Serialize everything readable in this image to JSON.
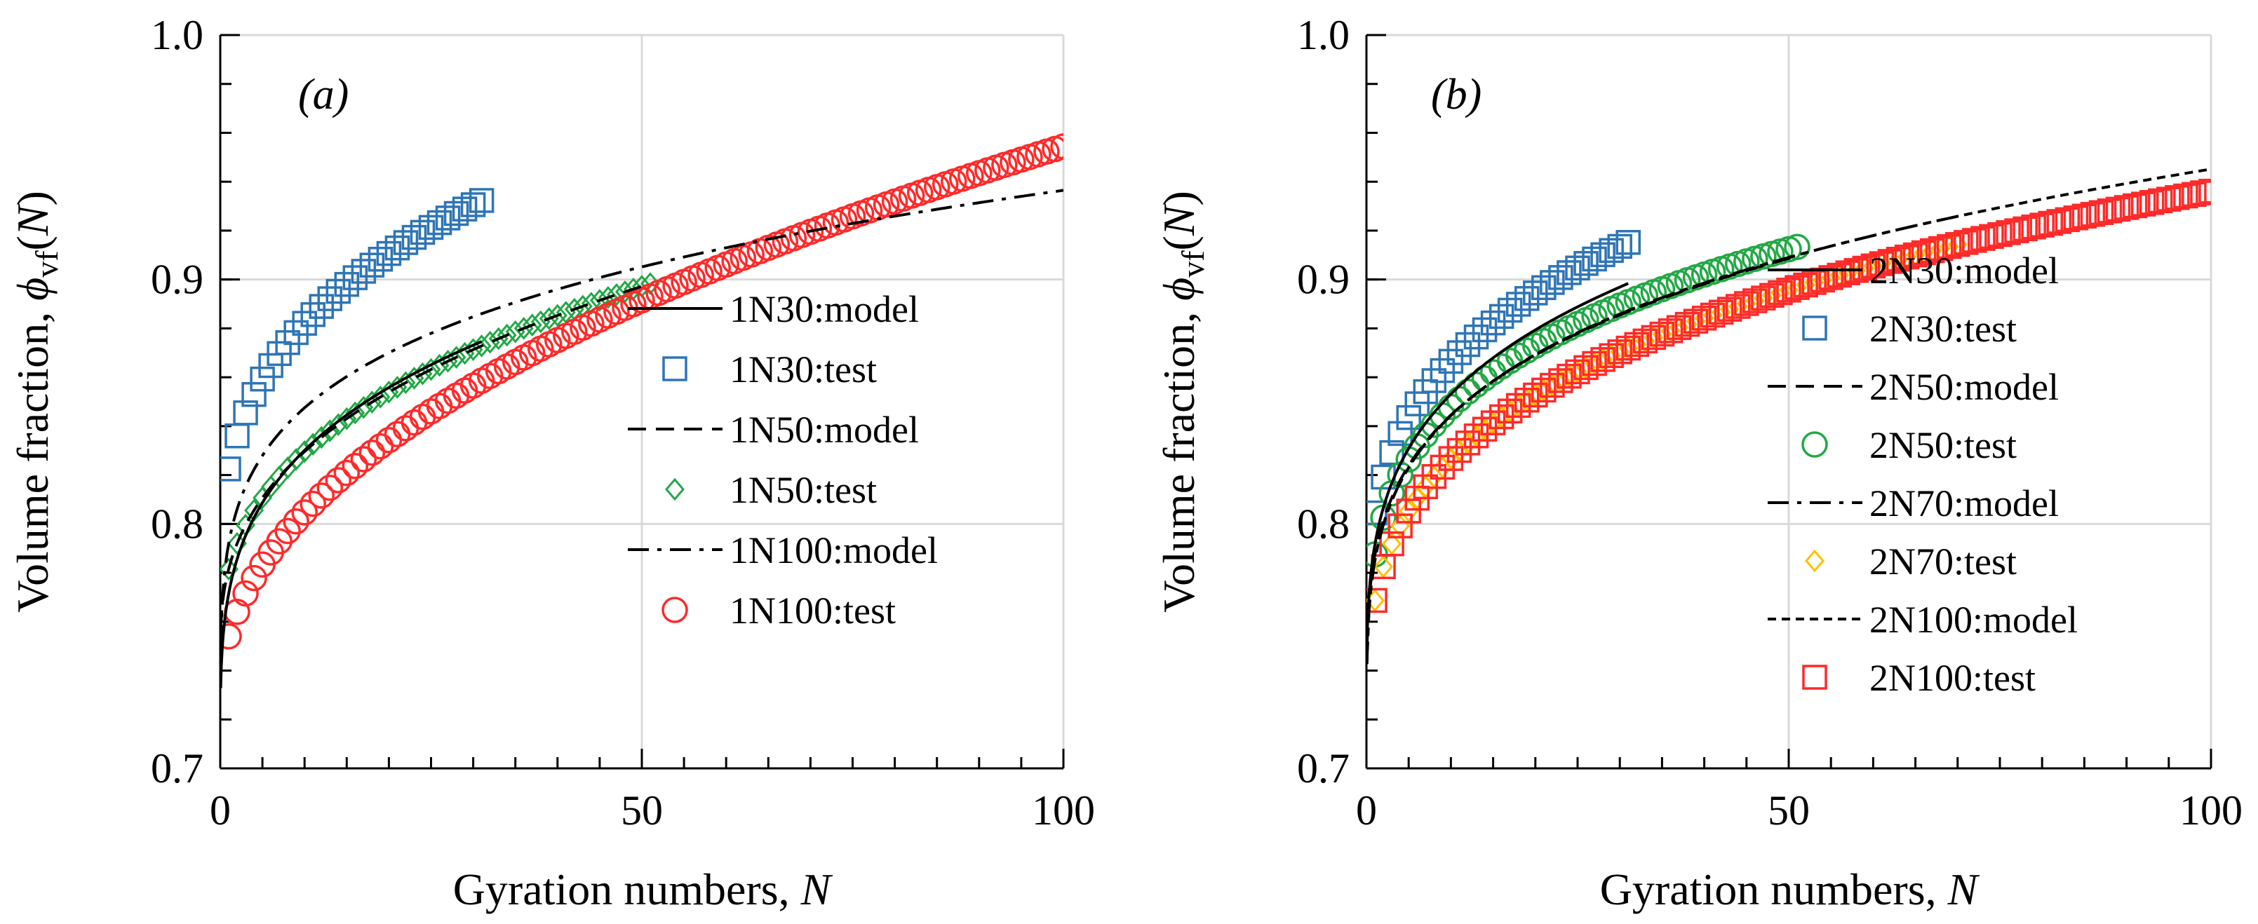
{
  "chart_data": [
    {
      "type": "scatter",
      "panel_label": "(a)",
      "xlabel": "Gyration numbers, ",
      "xlabel_italic": "N",
      "ylabel": "Volume fraction, ",
      "ylabel_symbol": "ϕ",
      "ylabel_sub": "vf",
      "ylabel_suffix": "(",
      "ylabel_arg": "N",
      "ylabel_close": ")",
      "xlim": [
        0,
        100
      ],
      "ylim": [
        0.7,
        1.0
      ],
      "xticks": [
        0,
        50,
        100
      ],
      "xtick_labels": [
        "0",
        "50",
        "100"
      ],
      "yticks": [
        0.7,
        0.8,
        0.9,
        1.0
      ],
      "ytick_labels": [
        "0.7",
        "0.8",
        "0.9",
        "1.0"
      ],
      "grid": true,
      "legend_position": "center-right",
      "series": [
        {
          "name": "1N30:model",
          "kind": "line",
          "dash": "solid",
          "color": "#000000",
          "params": {
            "a": 0.7,
            "b": 0.0715,
            "c": 0.26
          },
          "x_max": 31
        },
        {
          "name": "1N30:test",
          "kind": "marker",
          "marker": "square",
          "color": "#2E75B6",
          "params": {
            "a": 0.769,
            "b": 0.0535,
            "c": 0.325
          },
          "x_max": 31
        },
        {
          "name": "1N50:model",
          "kind": "line",
          "dash": "dashed",
          "color": "#000000",
          "params": {
            "a": 0.745,
            "b": 0.0365,
            "c": 0.365
          },
          "x_max": 51
        },
        {
          "name": "1N50:test",
          "kind": "marker",
          "marker": "diamond",
          "color": "#22A845",
          "params": {
            "a": 0.745,
            "b": 0.0365,
            "c": 0.365
          },
          "x_max": 51
        },
        {
          "name": "1N100:model",
          "kind": "line",
          "dash": "dashdot",
          "color": "#000000",
          "params": {
            "a": 0.7,
            "b": 0.092,
            "c": 0.205
          },
          "x_max": 100
        },
        {
          "name": "1N100:test",
          "kind": "marker",
          "marker": "circle",
          "color": "#FF2A2A",
          "params": {
            "a": 0.728,
            "b": 0.026,
            "c": 0.47
          },
          "x_max": 100
        }
      ]
    },
    {
      "type": "scatter",
      "panel_label": "(b)",
      "xlabel": "Gyration numbers, ",
      "xlabel_italic": "N",
      "ylabel": "Volume fraction, ",
      "ylabel_symbol": "ϕ",
      "ylabel_sub": "vf",
      "ylabel_suffix": "(",
      "ylabel_arg": "N",
      "ylabel_close": ")",
      "xlim": [
        0,
        100
      ],
      "ylim": [
        0.7,
        1.0
      ],
      "xticks": [
        0,
        50,
        100
      ],
      "xtick_labels": [
        "0",
        "50",
        "100"
      ],
      "yticks": [
        0.7,
        0.8,
        0.9,
        1.0
      ],
      "ytick_labels": [
        "0.7",
        "0.8",
        "0.9",
        "1.0"
      ],
      "grid": true,
      "legend_position": "center-right",
      "series": [
        {
          "name": "2N30:model",
          "kind": "line",
          "dash": "solid",
          "color": "#000000",
          "params": {
            "a": 0.708,
            "b": 0.0835,
            "c": 0.24
          },
          "x_max": 31
        },
        {
          "name": "2N30:test",
          "kind": "marker",
          "marker": "square",
          "color": "#2E75B6",
          "params": {
            "a": 0.736,
            "b": 0.0685,
            "c": 0.28
          },
          "x_max": 31
        },
        {
          "name": "2N50:model",
          "kind": "line",
          "dash": "dashed",
          "color": "#000000",
          "params": {
            "a": 0.712,
            "b": 0.0754,
            "c": 0.245
          },
          "x_max": 51
        },
        {
          "name": "2N50:test",
          "kind": "marker",
          "marker": "circle",
          "color": "#22A845",
          "params": {
            "a": 0.696,
            "b": 0.0915,
            "c": 0.22
          },
          "x_max": 51
        },
        {
          "name": "2N70:model",
          "kind": "line",
          "dash": "dashdot",
          "color": "#000000",
          "params": {
            "a": 0.7,
            "b": 0.085,
            "c": 0.23
          },
          "x_max": 70
        },
        {
          "name": "2N70:test",
          "kind": "marker",
          "marker": "diamond",
          "color": "#FFC000",
          "params": {
            "a": 0.703,
            "b": 0.0657,
            "c": 0.275
          },
          "x_max": 70
        },
        {
          "name": "2N100:model",
          "kind": "line",
          "dash": "dotted",
          "color": "#000000",
          "params": {
            "a": 0.7,
            "b": 0.085,
            "c": 0.23
          },
          "x_max": 100
        },
        {
          "name": "2N100:test",
          "kind": "marker",
          "marker": "square",
          "color": "#FF2A2A",
          "params": {
            "a": 0.703,
            "b": 0.0657,
            "c": 0.275
          },
          "x_max": 100
        }
      ]
    }
  ]
}
